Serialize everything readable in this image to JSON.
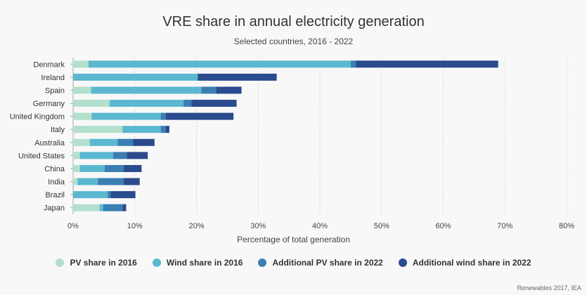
{
  "chart_data": {
    "type": "bar",
    "orientation": "horizontal",
    "stacked": true,
    "title": "VRE share in annual electricity generation",
    "subtitle": "Selected countries, 2016 - 2022",
    "xlabel": "Percentage of total generation",
    "xlim": [
      0,
      80
    ],
    "xticks": [
      "0%",
      "10%",
      "20%",
      "30%",
      "40%",
      "50%",
      "60%",
      "70%",
      "80%"
    ],
    "grid": true,
    "legend_position": "bottom",
    "categories": [
      "Denmark",
      "Ireland",
      "Spain",
      "Germany",
      "United Kingdom",
      "Italy",
      "Australia",
      "United States",
      "China",
      "India",
      "Brazil",
      "Japan"
    ],
    "series": [
      {
        "name": "PV share in 2016",
        "color": "#b2e0cc",
        "values": [
          2.5,
          0,
          2.9,
          5.9,
          3.0,
          8.0,
          2.7,
          1.1,
          1.1,
          0.7,
          0,
          4.3
        ]
      },
      {
        "name": "Wind share in 2016",
        "color": "#5bb8d0",
        "values": [
          42.5,
          20.2,
          17.9,
          12.0,
          11.2,
          6.2,
          4.5,
          5.4,
          4.0,
          3.3,
          5.6,
          0.6
        ]
      },
      {
        "name": "Additional PV share in 2022",
        "color": "#3b7fb2",
        "values": [
          0.8,
          0,
          2.4,
          1.3,
          0.8,
          0.8,
          2.5,
          2.2,
          3.1,
          4.2,
          0.5,
          3.1
        ]
      },
      {
        "name": "Additional wind share in 2022",
        "color": "#2a4b8e",
        "values": [
          23.1,
          12.8,
          4.1,
          7.3,
          11.0,
          0.6,
          3.5,
          3.4,
          2.9,
          2.6,
          4.0,
          0.6
        ]
      }
    ]
  },
  "source": "Renewables 2017, IEA"
}
